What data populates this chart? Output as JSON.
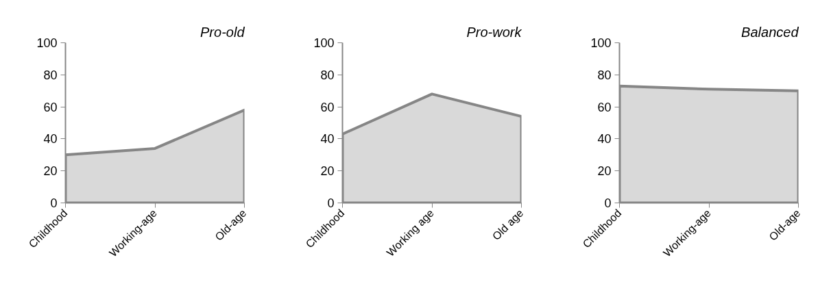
{
  "chart_data": [
    {
      "type": "area",
      "title": "Pro-old",
      "categories": [
        "Childhood",
        "Working-age",
        "Old-age"
      ],
      "series": [
        {
          "color": "#d9d9d9",
          "values": [
            30,
            34,
            58
          ]
        }
      ],
      "ylim": [
        0,
        100
      ],
      "yticks": [
        0,
        20,
        40,
        60,
        80,
        100
      ]
    },
    {
      "type": "area",
      "title": "Pro-work",
      "categories": [
        "Childhood",
        "Working age",
        "Old age"
      ],
      "series": [
        {
          "color": "#d9d9d9",
          "values": [
            43,
            68,
            54
          ]
        }
      ],
      "ylim": [
        0,
        100
      ],
      "yticks": [
        0,
        20,
        40,
        60,
        80,
        100
      ]
    },
    {
      "type": "area",
      "title": "Balanced",
      "categories": [
        "Childhood",
        "Working-age",
        "Old-age"
      ],
      "series": [
        {
          "color": "#d9d9d9",
          "values": [
            73,
            71,
            70
          ]
        }
      ],
      "ylim": [
        0,
        100
      ],
      "yticks": [
        0,
        20,
        40,
        60,
        80,
        100
      ]
    }
  ]
}
